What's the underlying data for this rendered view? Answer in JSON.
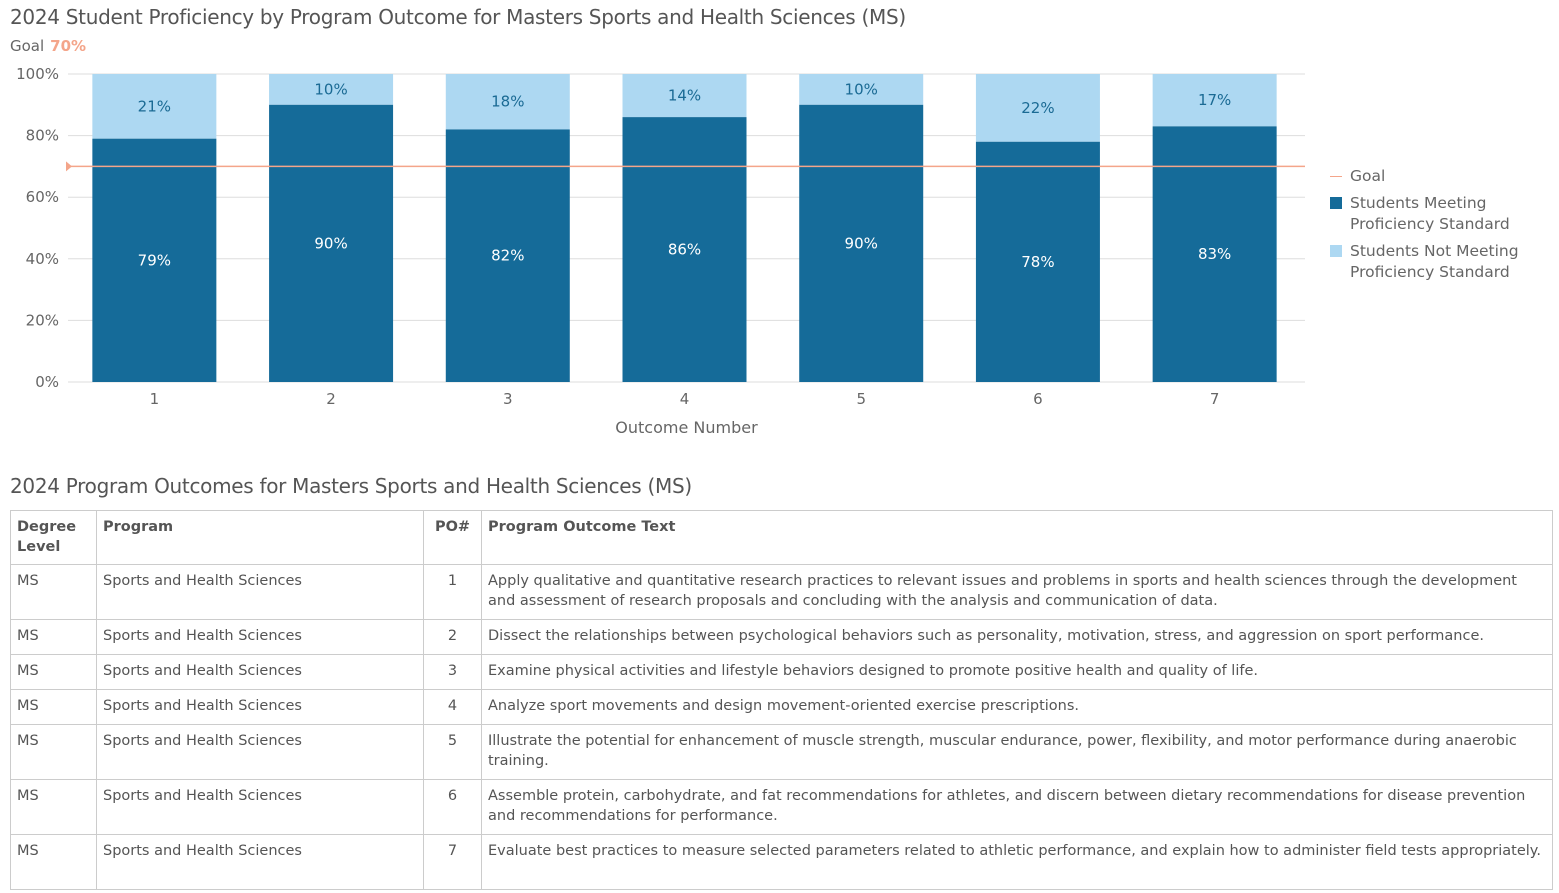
{
  "chart_data": {
    "type": "bar",
    "stacked": true,
    "title": "2024 Student Proficiency by Program Outcome for Masters Sports and Health Sciences (MS)",
    "goal_label": "Goal",
    "goal_value_label": "70%",
    "goal": 70,
    "xlabel": "Outcome Number",
    "ylabel": "",
    "ylim": [
      0,
      100
    ],
    "yticks": [
      "0%",
      "20%",
      "40%",
      "60%",
      "80%",
      "100%"
    ],
    "categories": [
      "1",
      "2",
      "3",
      "4",
      "5",
      "6",
      "7"
    ],
    "series": [
      {
        "name": "Students Meeting Proficiency Standard",
        "color": "#156b99",
        "values": [
          79,
          90,
          82,
          86,
          90,
          78,
          83
        ],
        "labels": [
          "79%",
          "90%",
          "82%",
          "86%",
          "90%",
          "78%",
          "83%"
        ]
      },
      {
        "name": "Students Not Meeting Proficiency Standard",
        "color": "#add8f2",
        "values": [
          21,
          10,
          18,
          14,
          10,
          22,
          17
        ],
        "labels": [
          "21%",
          "10%",
          "18%",
          "14%",
          "10%",
          "22%",
          "17%"
        ]
      }
    ],
    "goal_color": "#f4a58a",
    "grid": true,
    "legend": "right"
  },
  "legend": {
    "goal": "Goal",
    "meeting": [
      "Students Meeting",
      "Proficiency Standard"
    ],
    "not_meeting": [
      "Students Not Meeting",
      "Proficiency Standard"
    ]
  },
  "table": {
    "title": "2024 Program Outcomes for Masters Sports and Health Sciences (MS)",
    "headers": [
      "Degree Level",
      "Program",
      "PO#",
      "Program Outcome Text"
    ],
    "rows": [
      [
        "MS",
        "Sports and Health Sciences",
        "1",
        "Apply qualitative and quantitative research practices to relevant issues and problems in sports and health sciences through the development and assessment of research proposals and concluding with the analysis and communication of data."
      ],
      [
        "MS",
        "Sports and Health Sciences",
        "2",
        "Dissect the relationships between psychological behaviors such as personality, motivation, stress, and aggression on sport performance."
      ],
      [
        "MS",
        "Sports and Health Sciences",
        "3",
        "Examine physical activities and lifestyle behaviors designed to promote positive health and quality of life."
      ],
      [
        "MS",
        "Sports and Health Sciences",
        "4",
        "Analyze sport movements and design movement-oriented exercise prescriptions."
      ],
      [
        "MS",
        "Sports and Health Sciences",
        "5",
        "Illustrate the potential for enhancement of muscle strength, muscular endurance, power, flexibility, and motor performance during anaerobic training."
      ],
      [
        "MS",
        "Sports and Health Sciences",
        "6",
        "Assemble protein, carbohydrate, and fat recommendations for athletes, and discern between dietary recommendations for disease prevention and recommendations for performance."
      ],
      [
        "MS",
        "Sports and Health Sciences",
        "7",
        "Evaluate best practices to measure selected parameters related to athletic performance, and explain how to administer field tests appropriately."
      ]
    ]
  }
}
